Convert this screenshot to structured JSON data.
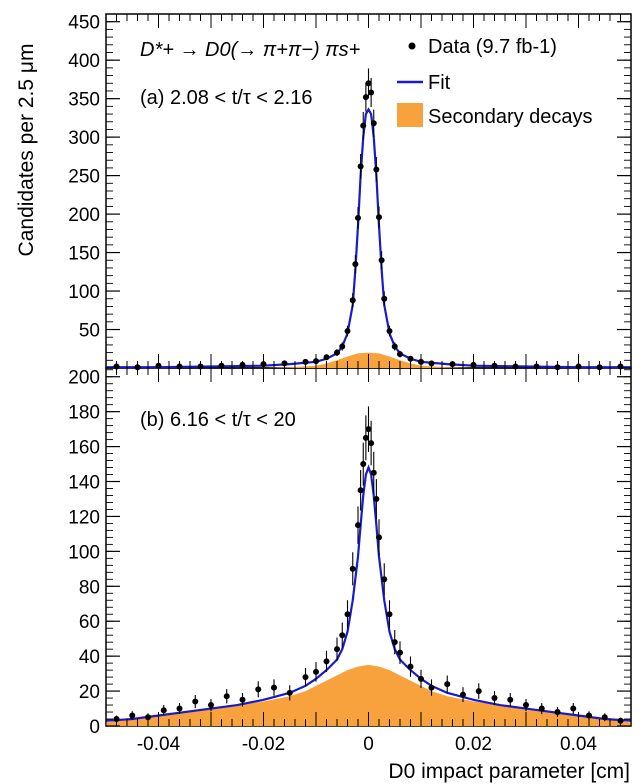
{
  "chart_data": [
    {
      "type": "scatter",
      "panel_label": "(a) 2.08 < t/τ < 2.16",
      "decay_label": "D*+ → D0(→ π+π−) πs+",
      "ylabel": "Candidates per 2.5 μm",
      "xlabel": "",
      "xlim": [
        -0.05,
        0.05
      ],
      "ylim": [
        0,
        460
      ],
      "yticks": [
        "50",
        "100",
        "150",
        "200",
        "250",
        "300",
        "350",
        "400",
        "450"
      ],
      "xticks": [],
      "legend": {
        "placement": "top-right",
        "entries": [
          {
            "label": "Data (9.7 fb-1)",
            "marker": "point",
            "color": "#000000"
          },
          {
            "label": "Fit",
            "marker": "line",
            "color": "#1a1acc"
          },
          {
            "label": "Secondary decays",
            "marker": "fill",
            "color": "#f7a23c"
          }
        ]
      },
      "series": [
        {
          "name": "Data (9.7 fb-1)",
          "x": [
            -0.048,
            -0.044,
            -0.04,
            -0.036,
            -0.032,
            -0.028,
            -0.024,
            -0.02,
            -0.016,
            -0.012,
            -0.01,
            -0.008,
            -0.006,
            -0.005,
            -0.004,
            -0.003,
            -0.0025,
            -0.002,
            -0.0015,
            -0.001,
            -0.0005,
            0,
            0.0005,
            0.001,
            0.0015,
            0.002,
            0.0025,
            0.003,
            0.004,
            0.005,
            0.006,
            0.008,
            0.01,
            0.012,
            0.016,
            0.02,
            0.024,
            0.028,
            0.032,
            0.036,
            0.04,
            0.044,
            0.048
          ],
          "y": [
            2,
            1,
            3,
            2,
            2,
            3,
            4,
            5,
            6,
            8,
            9,
            14,
            20,
            28,
            48,
            88,
            135,
            195,
            262,
            315,
            352,
            370,
            358,
            318,
            258,
            196,
            140,
            90,
            48,
            28,
            18,
            12,
            8,
            6,
            5,
            4,
            3,
            2,
            2,
            1,
            2,
            1,
            2
          ]
        },
        {
          "name": "Fit",
          "x": [
            -0.05,
            -0.04,
            -0.03,
            -0.02,
            -0.015,
            -0.01,
            -0.008,
            -0.006,
            -0.005,
            -0.004,
            -0.003,
            -0.0025,
            -0.002,
            -0.0015,
            -0.001,
            -0.0005,
            0,
            0.0005,
            0.001,
            0.0015,
            0.002,
            0.0025,
            0.003,
            0.004,
            0.005,
            0.006,
            0.008,
            0.01,
            0.015,
            0.02,
            0.03,
            0.04,
            0.05
          ],
          "y": [
            1,
            1,
            2,
            3,
            5,
            8,
            12,
            19,
            28,
            45,
            82,
            128,
            185,
            250,
            300,
            330,
            336,
            330,
            300,
            250,
            185,
            128,
            82,
            45,
            28,
            19,
            12,
            8,
            5,
            3,
            2,
            1,
            1
          ]
        },
        {
          "name": "Secondary decays",
          "x": [
            -0.05,
            -0.02,
            -0.015,
            -0.01,
            -0.008,
            -0.006,
            -0.004,
            -0.002,
            0,
            0.002,
            0.004,
            0.006,
            0.008,
            0.01,
            0.015,
            0.02,
            0.05
          ],
          "y": [
            0,
            0,
            1,
            3,
            6,
            10,
            15,
            19,
            20,
            19,
            15,
            10,
            6,
            3,
            1,
            0,
            0
          ]
        }
      ]
    },
    {
      "type": "scatter",
      "panel_label": "(b) 6.16 < t/τ < 20",
      "ylabel": "Candidates per 2.5 μm",
      "xlabel": "D0 impact parameter [cm]",
      "xlim": [
        -0.05,
        0.05
      ],
      "ylim": [
        0,
        205
      ],
      "yticks": [
        "0",
        "20",
        "40",
        "60",
        "80",
        "100",
        "120",
        "140",
        "160",
        "180",
        "200"
      ],
      "xticks": [
        "-0.04",
        "-0.02",
        "0",
        "0.02",
        "0.04"
      ],
      "series": [
        {
          "name": "Data (9.7 fb-1)",
          "x": [
            -0.048,
            -0.045,
            -0.042,
            -0.039,
            -0.036,
            -0.033,
            -0.03,
            -0.027,
            -0.024,
            -0.021,
            -0.018,
            -0.015,
            -0.012,
            -0.01,
            -0.008,
            -0.006,
            -0.005,
            -0.004,
            -0.003,
            -0.002,
            -0.0015,
            -0.001,
            -0.0005,
            0,
            0.0005,
            0.001,
            0.0015,
            0.002,
            0.003,
            0.004,
            0.005,
            0.006,
            0.008,
            0.01,
            0.012,
            0.015,
            0.018,
            0.021,
            0.024,
            0.027,
            0.03,
            0.033,
            0.036,
            0.039,
            0.042,
            0.045,
            0.048
          ],
          "y": [
            4,
            6,
            5,
            9,
            10,
            14,
            12,
            17,
            15,
            21,
            22,
            19,
            28,
            31,
            37,
            44,
            52,
            64,
            90,
            115,
            135,
            150,
            165,
            170,
            162,
            145,
            130,
            108,
            84,
            64,
            48,
            42,
            34,
            27,
            22,
            24,
            18,
            20,
            16,
            15,
            12,
            10,
            8,
            10,
            6,
            5,
            3
          ]
        },
        {
          "name": "Fit",
          "x": [
            -0.05,
            -0.045,
            -0.04,
            -0.035,
            -0.03,
            -0.025,
            -0.02,
            -0.015,
            -0.012,
            -0.01,
            -0.008,
            -0.006,
            -0.005,
            -0.004,
            -0.003,
            -0.002,
            -0.0015,
            -0.001,
            -0.0005,
            0,
            0.0005,
            0.001,
            0.0015,
            0.002,
            0.003,
            0.004,
            0.005,
            0.006,
            0.008,
            0.01,
            0.012,
            0.015,
            0.02,
            0.025,
            0.03,
            0.035,
            0.04,
            0.045,
            0.05
          ],
          "y": [
            3,
            4,
            6,
            8,
            10,
            12,
            15,
            19,
            23,
            27,
            32,
            38,
            44,
            54,
            72,
            97,
            115,
            132,
            144,
            148,
            144,
            132,
            115,
            97,
            72,
            54,
            44,
            38,
            32,
            27,
            23,
            19,
            15,
            12,
            10,
            8,
            6,
            4,
            3
          ]
        },
        {
          "name": "Secondary decays",
          "x": [
            -0.05,
            -0.045,
            -0.04,
            -0.035,
            -0.03,
            -0.025,
            -0.02,
            -0.015,
            -0.012,
            -0.01,
            -0.008,
            -0.006,
            -0.004,
            -0.002,
            0,
            0.002,
            0.004,
            0.006,
            0.008,
            0.01,
            0.012,
            0.015,
            0.02,
            0.025,
            0.03,
            0.035,
            0.04,
            0.045,
            0.05
          ],
          "y": [
            2,
            4,
            6,
            8,
            10,
            12,
            14,
            17,
            20,
            23,
            26,
            29,
            32,
            34,
            35,
            34,
            32,
            29,
            26,
            23,
            20,
            17,
            14,
            12,
            10,
            8,
            6,
            4,
            2
          ]
        }
      ]
    }
  ]
}
